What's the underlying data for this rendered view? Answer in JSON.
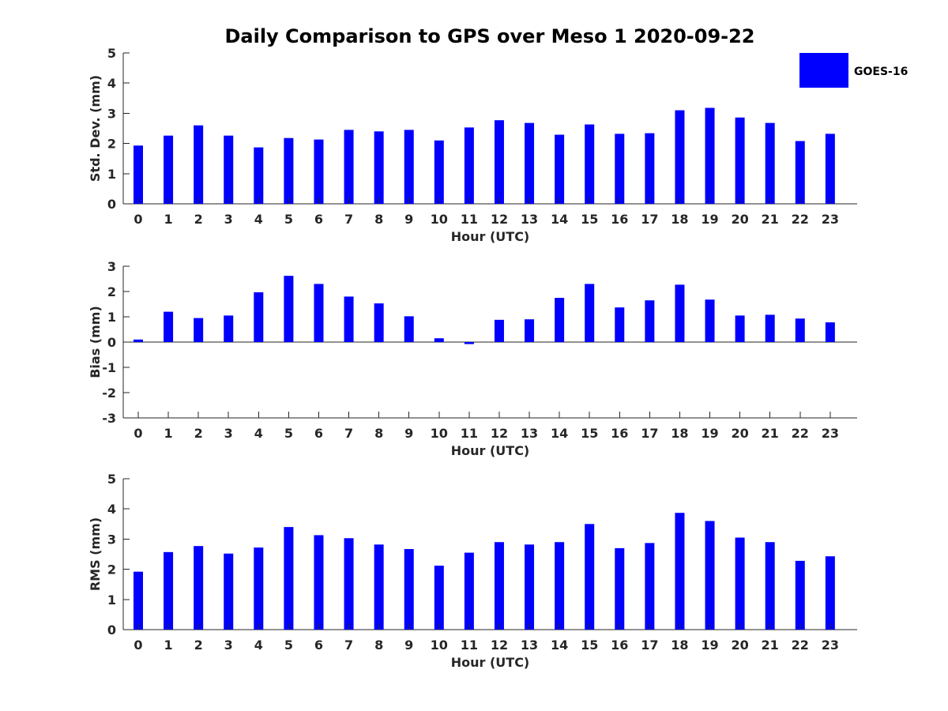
{
  "title": "Daily Comparison to GPS over Meso 1 2020-09-22",
  "legend": {
    "label": "GOES-16",
    "color": "#0000FF",
    "position": "top-right"
  },
  "chart_data": [
    {
      "type": "bar",
      "title": "",
      "xlabel": "Hour (UTC)",
      "ylabel": "Std. Dev. (mm)",
      "ylim": [
        0,
        5
      ],
      "yticks": [
        0,
        1,
        2,
        3,
        4,
        5
      ],
      "grid": false,
      "categories": [
        "0",
        "1",
        "2",
        "3",
        "4",
        "5",
        "6",
        "7",
        "8",
        "9",
        "10",
        "11",
        "12",
        "13",
        "14",
        "15",
        "16",
        "17",
        "18",
        "19",
        "20",
        "21",
        "22",
        "23"
      ],
      "series": [
        {
          "name": "GOES-16",
          "values": [
            1.93,
            2.26,
            2.6,
            2.26,
            1.87,
            2.18,
            2.13,
            2.45,
            2.4,
            2.45,
            2.1,
            2.53,
            2.77,
            2.68,
            2.29,
            2.63,
            2.32,
            2.34,
            3.1,
            3.18,
            2.86,
            2.68,
            2.08,
            2.32
          ]
        }
      ]
    },
    {
      "type": "bar",
      "title": "",
      "xlabel": "Hour (UTC)",
      "ylabel": "Bias (mm)",
      "ylim": [
        -3,
        3
      ],
      "yticks": [
        -3,
        -2,
        -1,
        0,
        1,
        2,
        3
      ],
      "grid": false,
      "zero_line": true,
      "categories": [
        "0",
        "1",
        "2",
        "3",
        "4",
        "5",
        "6",
        "7",
        "8",
        "9",
        "10",
        "11",
        "12",
        "13",
        "14",
        "15",
        "16",
        "17",
        "18",
        "19",
        "20",
        "21",
        "22",
        "23"
      ],
      "series": [
        {
          "name": "GOES-16",
          "values": [
            0.1,
            1.2,
            0.95,
            1.05,
            1.97,
            2.62,
            2.3,
            1.8,
            1.53,
            1.02,
            0.15,
            -0.08,
            0.88,
            0.9,
            1.75,
            2.3,
            1.37,
            1.65,
            2.27,
            1.68,
            1.05,
            1.08,
            0.93,
            0.78
          ]
        }
      ]
    },
    {
      "type": "bar",
      "title": "",
      "xlabel": "Hour (UTC)",
      "ylabel": "RMS (mm)",
      "ylim": [
        0,
        5
      ],
      "yticks": [
        0,
        1,
        2,
        3,
        4,
        5
      ],
      "grid": false,
      "categories": [
        "0",
        "1",
        "2",
        "3",
        "4",
        "5",
        "6",
        "7",
        "8",
        "9",
        "10",
        "11",
        "12",
        "13",
        "14",
        "15",
        "16",
        "17",
        "18",
        "19",
        "20",
        "21",
        "22",
        "23"
      ],
      "series": [
        {
          "name": "GOES-16",
          "values": [
            1.92,
            2.57,
            2.77,
            2.52,
            2.72,
            3.4,
            3.13,
            3.03,
            2.82,
            2.67,
            2.12,
            2.55,
            2.9,
            2.82,
            2.9,
            3.5,
            2.7,
            2.87,
            3.87,
            3.6,
            3.05,
            2.9,
            2.28,
            2.43
          ]
        }
      ]
    }
  ]
}
